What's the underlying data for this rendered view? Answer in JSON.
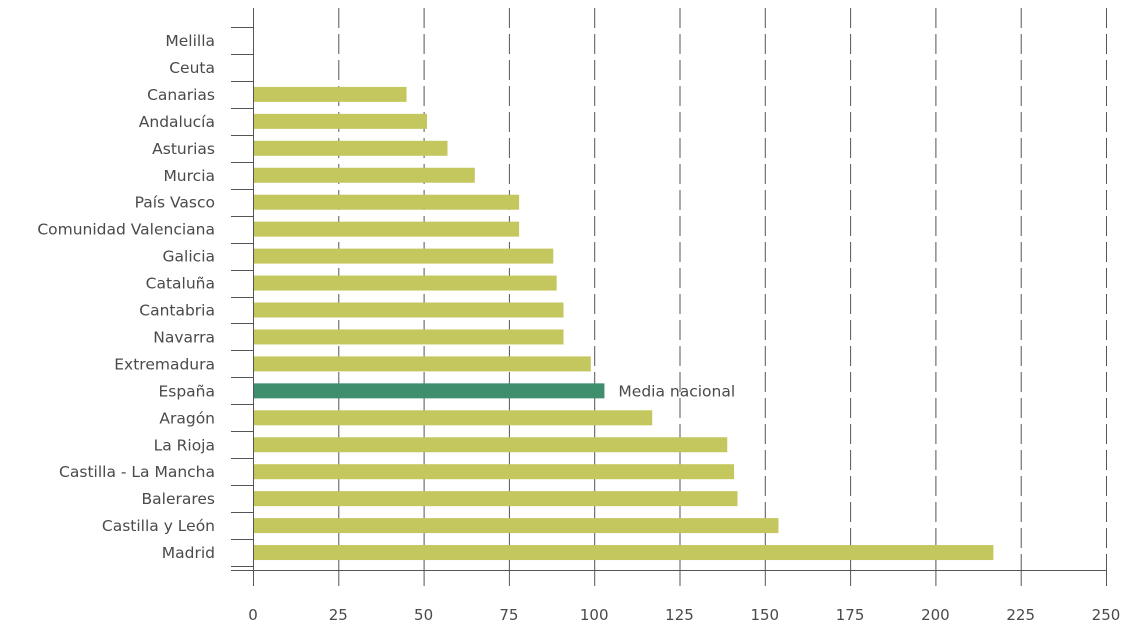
{
  "chart_data": {
    "type": "bar",
    "orientation": "horizontal",
    "categories": [
      "Melilla",
      "Ceuta",
      "Canarias",
      "Andalucía",
      "Asturias",
      "Murcia",
      "País Vasco",
      "Comunidad Valenciana",
      "Galicia",
      "Cataluña",
      "Cantabria",
      "Navarra",
      "Extremadura",
      "España",
      "Aragón",
      "La Rioja",
      "Castilla - La Mancha",
      "Balerares",
      "Castilla y León",
      "Madrid"
    ],
    "values": [
      0,
      0,
      45,
      51,
      57,
      65,
      78,
      78,
      88,
      89,
      91,
      91,
      99,
      103,
      117,
      139,
      141,
      142,
      154,
      217
    ],
    "highlight_category": "España",
    "annotation": "Media nacional",
    "xlim": [
      0,
      250
    ],
    "xticks": [
      0,
      25,
      50,
      75,
      100,
      125,
      150,
      175,
      200,
      225,
      250
    ],
    "grid": "vertical-dashed",
    "colors": {
      "bar": "#c4c75e",
      "highlight": "#3f8f6e",
      "axis": "#555555",
      "text": "#4a4a4a"
    },
    "title": "",
    "xlabel": "",
    "ylabel": ""
  }
}
